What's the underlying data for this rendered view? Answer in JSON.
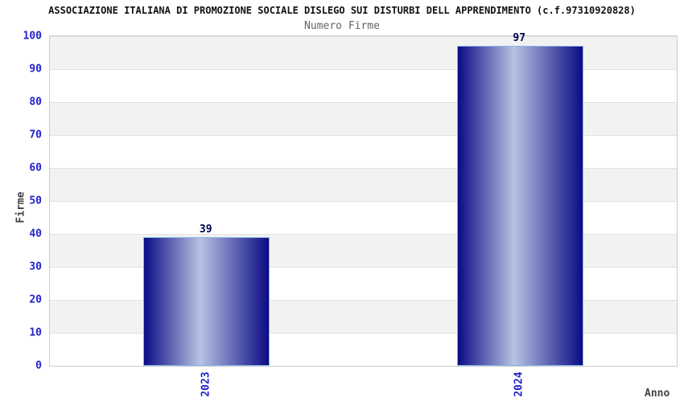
{
  "header": {
    "title": "ASSOCIAZIONE ITALIANA DI PROMOZIONE SOCIALE DISLEGO SUI DISTURBI DELL APPRENDIMENTO (c.f.97310920828)",
    "subtitle": "Numero Firme"
  },
  "chart_data": {
    "type": "bar",
    "title": "Numero Firme",
    "categories": [
      "2023",
      "2024"
    ],
    "values": [
      39,
      97
    ],
    "xlabel": "Anno",
    "ylabel": "Firme",
    "ylim": [
      0,
      100
    ],
    "ytick_step": 10,
    "yticks": [
      0,
      10,
      20,
      30,
      40,
      50,
      60,
      70,
      80,
      90,
      100
    ],
    "grid": "horizontal alternating bands, line every 10",
    "legend": "none",
    "bar_value_labels_shown": true,
    "x_tick_rotation_degrees": 90
  },
  "colors": {
    "title": "#111111",
    "subtitle": "#666666",
    "tick_label": "#2222cc",
    "axis_title": "#444444",
    "value_label": "#00004d",
    "frame": "#cccccc",
    "grid_line": "#e2e2e2",
    "band_gray": "#f2f2f2",
    "band_white": "#ffffff",
    "bar_dark": "#0b0b84",
    "bar_light": "#b7c3e2",
    "bar_border": "#7fb2e8"
  }
}
